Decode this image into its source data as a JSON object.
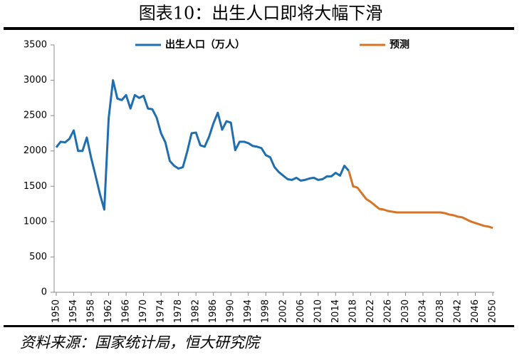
{
  "chart_data": {
    "type": "line",
    "title": "图表10：出生人口即将大幅下滑",
    "source": "资料来源：国家统计局，恒大研究院",
    "legend": "top",
    "x": [
      1950,
      1951,
      1952,
      1953,
      1954,
      1955,
      1956,
      1957,
      1958,
      1959,
      1960,
      1961,
      1962,
      1963,
      1964,
      1965,
      1966,
      1967,
      1968,
      1969,
      1970,
      1971,
      1972,
      1973,
      1974,
      1975,
      1976,
      1977,
      1978,
      1979,
      1980,
      1981,
      1982,
      1983,
      1984,
      1985,
      1986,
      1987,
      1988,
      1989,
      1990,
      1991,
      1992,
      1993,
      1994,
      1995,
      1996,
      1997,
      1998,
      1999,
      2000,
      2001,
      2002,
      2003,
      2004,
      2005,
      2006,
      2007,
      2008,
      2009,
      2010,
      2011,
      2012,
      2013,
      2014,
      2015,
      2016,
      2017,
      2018,
      2019,
      2020,
      2021,
      2022,
      2023,
      2024,
      2025,
      2026,
      2027,
      2028,
      2029,
      2030,
      2031,
      2032,
      2033,
      2034,
      2035,
      2036,
      2037,
      2038,
      2039,
      2040,
      2041,
      2042,
      2043,
      2044,
      2045,
      2046,
      2047,
      2048,
      2049,
      2050
    ],
    "series": [
      {
        "name": "出生人口（万人）",
        "color": "#1f6eb0",
        "values": [
          2050,
          2130,
          2120,
          2170,
          2290,
          2000,
          2000,
          2190,
          1900,
          1650,
          1390,
          1170,
          2460,
          3000,
          2740,
          2720,
          2790,
          2600,
          2790,
          2750,
          2780,
          2600,
          2590,
          2470,
          2250,
          2120,
          1860,
          1790,
          1750,
          1770,
          1990,
          2250,
          2260,
          2080,
          2060,
          2200,
          2390,
          2540,
          2300,
          2420,
          2400,
          2010,
          2130,
          2130,
          2110,
          2070,
          2060,
          2040,
          1940,
          1910,
          1770,
          1700,
          1650,
          1600,
          1590,
          1620,
          1580,
          1590,
          1610,
          1620,
          1590,
          1600,
          1640,
          1640,
          1690,
          1650,
          1790,
          1720,
          null,
          null,
          null,
          null,
          null,
          null,
          null,
          null,
          null,
          null,
          null,
          null,
          null,
          null,
          null,
          null,
          null,
          null,
          null,
          null,
          null,
          null,
          null,
          null,
          null,
          null,
          null,
          null,
          null,
          null,
          null,
          null,
          null
        ]
      },
      {
        "name": "预测",
        "color": "#d67527",
        "values": [
          null,
          null,
          null,
          null,
          null,
          null,
          null,
          null,
          null,
          null,
          null,
          null,
          null,
          null,
          null,
          null,
          null,
          null,
          null,
          null,
          null,
          null,
          null,
          null,
          null,
          null,
          null,
          null,
          null,
          null,
          null,
          null,
          null,
          null,
          null,
          null,
          null,
          null,
          null,
          null,
          null,
          null,
          null,
          null,
          null,
          null,
          null,
          null,
          null,
          null,
          null,
          null,
          null,
          null,
          null,
          null,
          null,
          null,
          null,
          null,
          null,
          null,
          null,
          null,
          null,
          null,
          null,
          1720,
          1500,
          1480,
          1400,
          1320,
          1280,
          1230,
          1180,
          1170,
          1150,
          1140,
          1130,
          1130,
          1130,
          1130,
          1130,
          1130,
          1130,
          1130,
          1130,
          1130,
          1130,
          1120,
          1100,
          1090,
          1070,
          1060,
          1030,
          1000,
          980,
          960,
          940,
          930,
          910
        ]
      }
    ],
    "xlim": [
      1950,
      2050
    ],
    "xticks": [
      1950,
      1954,
      1958,
      1962,
      1966,
      1970,
      1974,
      1978,
      1982,
      1986,
      1990,
      1994,
      1998,
      2002,
      2006,
      2010,
      2014,
      2018,
      2022,
      2026,
      2030,
      2034,
      2038,
      2042,
      2046,
      2050
    ],
    "ylim": [
      0,
      3500
    ],
    "yticks": [
      0,
      500,
      1000,
      1500,
      2000,
      2500,
      3000,
      3500
    ],
    "grid": false
  }
}
